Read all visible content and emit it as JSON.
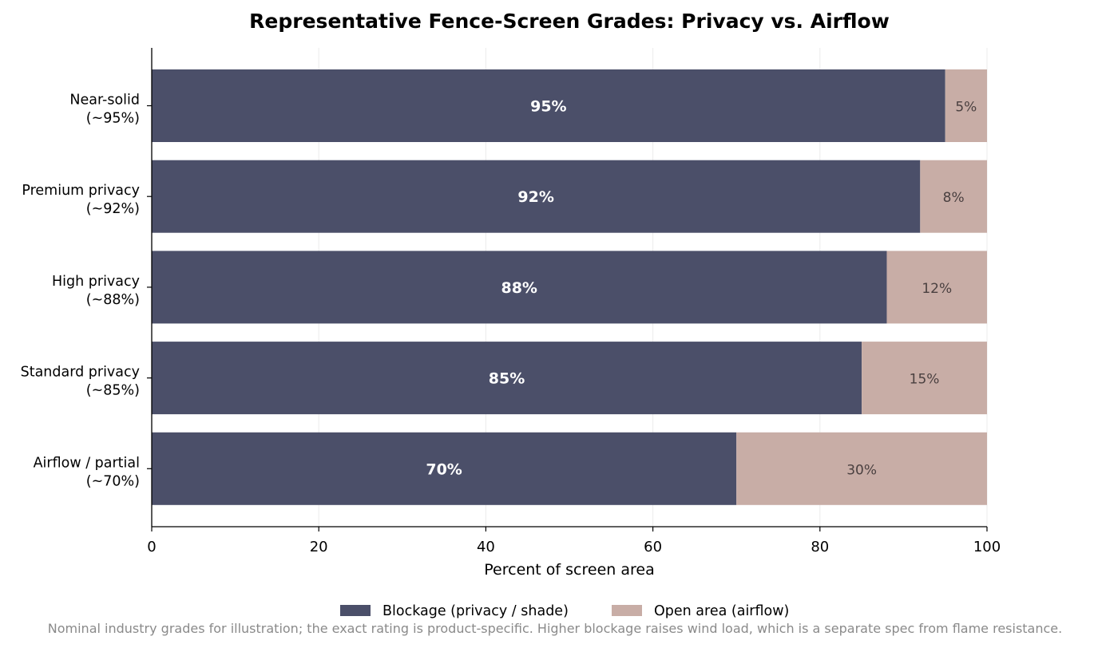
{
  "chart_data": {
    "type": "bar",
    "orientation": "horizontal",
    "stacked": true,
    "title": "Representative Fence-Screen Grades: Privacy vs. Airflow",
    "xlabel": "Percent of screen area",
    "ylabel": "",
    "xlim": [
      0,
      100
    ],
    "xticks": [
      "0",
      "20",
      "40",
      "60",
      "80",
      "100"
    ],
    "categories": [
      [
        "Near-solid",
        "(~95%)"
      ],
      [
        "Premium privacy",
        "(~92%)"
      ],
      [
        "High privacy",
        "(~88%)"
      ],
      [
        "Standard privacy",
        "(~85%)"
      ],
      [
        "Airflow / partial",
        "(~70%)"
      ]
    ],
    "series": [
      {
        "name": "Blockage (privacy / shade)",
        "color": "#4b4f69",
        "values": [
          95,
          92,
          88,
          85,
          70
        ],
        "labels": [
          "95%",
          "92%",
          "88%",
          "85%",
          "70%"
        ]
      },
      {
        "name": "Open area (airflow)",
        "color": "#c8ada6",
        "values": [
          5,
          8,
          12,
          15,
          30
        ],
        "labels": [
          "5%",
          "8%",
          "12%",
          "15%",
          "30%"
        ]
      }
    ],
    "grid": "vertical",
    "legend_position": "bottom-center"
  },
  "footnote": "Nominal industry grades for illustration; the exact rating is product-specific. Higher blockage raises wind load, which is a separate spec from flame resistance."
}
